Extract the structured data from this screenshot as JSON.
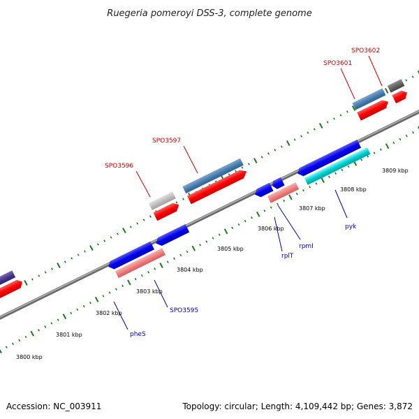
{
  "title": "Ruegeria pomeroyi DSS-3, complete genome",
  "footer": {
    "accession": "Accession: NC_003911",
    "topology": "Topology: circular; Length: 4,109,442 bp; Genes: 3,872"
  },
  "ticks": [
    "3800 kbp",
    "3801 kbp",
    "3802 kbp",
    "3803 kbp",
    "3804 kbp",
    "3805 kbp",
    "3806 kbp",
    "3807 kbp",
    "3808 kbp",
    "3809 kbp"
  ],
  "gene_labels": {
    "top": [
      "SPO3596",
      "SPO3597",
      "SPO3601",
      "SPO3602"
    ],
    "bottom": [
      "pheS",
      "SPO3595",
      "rplT",
      "rpmI",
      "pyk"
    ]
  },
  "colors": {
    "label_red": "#cc0000",
    "label_blue": "#0000aa",
    "backbone": "#8a8a8a",
    "tick": "#1a7a1a"
  }
}
